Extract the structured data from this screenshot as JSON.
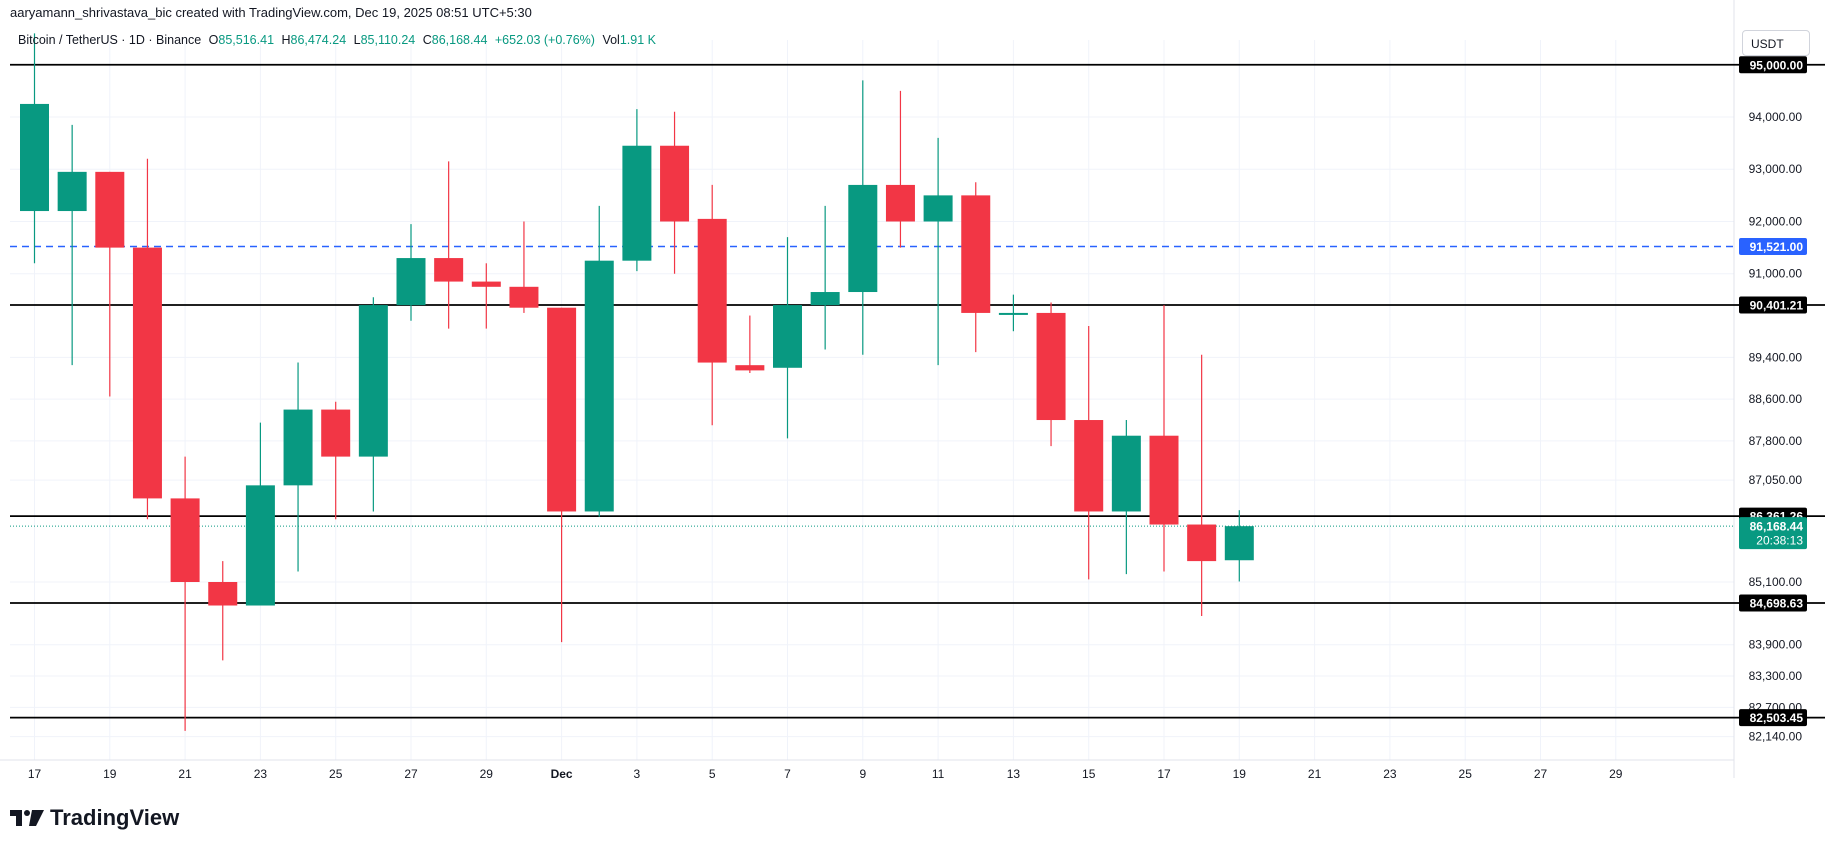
{
  "header": {
    "credit": "aaryamann_shrivastava_bic created with TradingView.com, Dec 19, 2025 08:51 UTC+5:30"
  },
  "legend": {
    "symbol": "Bitcoin / TetherUS · 1D · Binance",
    "o_label": "O",
    "o_value": "85,516.41",
    "h_label": "H",
    "h_value": "86,474.24",
    "l_label": "L",
    "l_value": "85,110.24",
    "c_label": "C",
    "c_value": "86,168.44",
    "change": "+652.03 (+0.76%)",
    "vol_label": "Vol",
    "vol_value": "1.91 K"
  },
  "currency_button": "USDT",
  "brand": {
    "name": "TradingView"
  },
  "colors": {
    "up": "#089981",
    "down": "#f23645",
    "level_line": "#000000",
    "dashed_level": "#2962ff",
    "grid": "#f0f3fa"
  },
  "chart_data": {
    "type": "candlestick",
    "y_tick_labels": [
      "94,000.00",
      "93,000.00",
      "92,000.00",
      "91,000.00",
      "89,400.00",
      "88,600.00",
      "87,800.00",
      "87,050.00",
      "85,100.00",
      "83,900.00",
      "83,300.00",
      "82,700.00",
      "82,140.00"
    ],
    "x_tick_labels": [
      "17",
      "19",
      "21",
      "23",
      "25",
      "27",
      "29",
      "Dec",
      "3",
      "5",
      "7",
      "9",
      "11",
      "13",
      "15",
      "17",
      "19",
      "21",
      "23",
      "25",
      "27",
      "29"
    ],
    "candles": [
      {
        "o": 92200,
        "h": 95600,
        "l": 91200,
        "c": 94250
      },
      {
        "o": 92200,
        "h": 93850,
        "l": 89250,
        "c": 92950
      },
      {
        "o": 92950,
        "h": 92950,
        "l": 88650,
        "c": 91500
      },
      {
        "o": 91500,
        "h": 93200,
        "l": 86300,
        "c": 86700
      },
      {
        "o": 86700,
        "h": 87500,
        "l": 82250,
        "c": 85100
      },
      {
        "o": 85100,
        "h": 85500,
        "l": 83600,
        "c": 84650
      },
      {
        "o": 84650,
        "h": 88150,
        "l": 84650,
        "c": 86950
      },
      {
        "o": 86950,
        "h": 89300,
        "l": 85300,
        "c": 88400
      },
      {
        "o": 88400,
        "h": 88550,
        "l": 86300,
        "c": 87500
      },
      {
        "o": 87500,
        "h": 90550,
        "l": 86450,
        "c": 90400
      },
      {
        "o": 90400,
        "h": 91950,
        "l": 90100,
        "c": 91300
      },
      {
        "o": 91300,
        "h": 93150,
        "l": 89950,
        "c": 90850
      },
      {
        "o": 90850,
        "h": 91200,
        "l": 89950,
        "c": 90750
      },
      {
        "o": 90750,
        "h": 92000,
        "l": 90250,
        "c": 90350
      },
      {
        "o": 90350,
        "h": 90350,
        "l": 83950,
        "c": 86450
      },
      {
        "o": 86450,
        "h": 92300,
        "l": 86350,
        "c": 91250
      },
      {
        "o": 91250,
        "h": 94150,
        "l": 91050,
        "c": 93450
      },
      {
        "o": 93450,
        "h": 94100,
        "l": 91000,
        "c": 92000
      },
      {
        "o": 92050,
        "h": 92700,
        "l": 88100,
        "c": 89300
      },
      {
        "o": 89250,
        "h": 90200,
        "l": 89100,
        "c": 89150
      },
      {
        "o": 89200,
        "h": 91700,
        "l": 87850,
        "c": 90400
      },
      {
        "o": 90400,
        "h": 92300,
        "l": 89550,
        "c": 90650
      },
      {
        "o": 90650,
        "h": 94700,
        "l": 89450,
        "c": 92700
      },
      {
        "o": 92700,
        "h": 94500,
        "l": 91500,
        "c": 92000
      },
      {
        "o": 92000,
        "h": 93600,
        "l": 89250,
        "c": 92500
      },
      {
        "o": 92500,
        "h": 92750,
        "l": 89500,
        "c": 90250
      },
      {
        "o": 90250,
        "h": 90600,
        "l": 89900,
        "c": 90250
      },
      {
        "o": 90250,
        "h": 90450,
        "l": 87700,
        "c": 88200
      },
      {
        "o": 88200,
        "h": 90000,
        "l": 85150,
        "c": 86450
      },
      {
        "o": 86450,
        "h": 88200,
        "l": 85250,
        "c": 87900
      },
      {
        "o": 87900,
        "h": 90400,
        "l": 85300,
        "c": 86200
      },
      {
        "o": 86200,
        "h": 89450,
        "l": 84450,
        "c": 85500
      },
      {
        "o": 85516.41,
        "h": 86474.24,
        "l": 85110.24,
        "c": 86168.44
      }
    ],
    "levels": [
      {
        "value": 95000,
        "label": "95,000.00",
        "style": "solid"
      },
      {
        "value": 91521,
        "label": "91,521.00",
        "style": "dashed"
      },
      {
        "value": 90401.21,
        "label": "90,401.21",
        "style": "solid"
      },
      {
        "value": 86361.26,
        "label": "86,361.26",
        "style": "solid"
      },
      {
        "value": 84698.63,
        "label": "84,698.63",
        "style": "solid"
      },
      {
        "value": 82503.45,
        "label": "82,503.45",
        "style": "solid"
      }
    ],
    "last_price": {
      "value": 86168.44,
      "label": "86,168.44",
      "countdown": "20:38:13"
    }
  }
}
